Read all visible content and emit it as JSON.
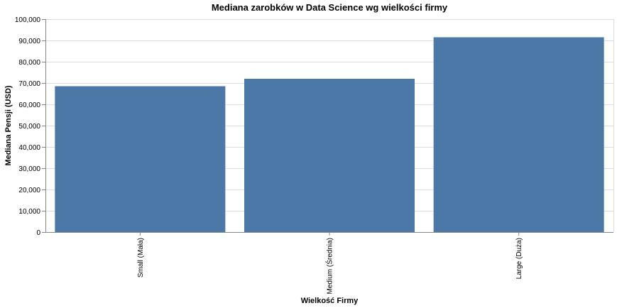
{
  "chart_data": {
    "type": "bar",
    "title": "Mediana zarobków w Data Science wg wielkości firmy",
    "xlabel": "Wielkość Firmy",
    "ylabel": "Mediana Pensji (USD)",
    "categories": [
      "Small (Mała)",
      "Medium (Średnia)",
      "Large (Duża)"
    ],
    "values": [
      68500,
      72000,
      91500
    ],
    "ylim": [
      0,
      100000
    ],
    "yticks": [
      0,
      10000,
      20000,
      30000,
      40000,
      50000,
      60000,
      70000,
      80000,
      90000,
      100000
    ],
    "ytick_labels": [
      "0",
      "10,000",
      "20,000",
      "30,000",
      "40,000",
      "50,000",
      "60,000",
      "70,000",
      "80,000",
      "90,000",
      "100,000"
    ],
    "grid": true,
    "bar_color": "#4c78a8"
  }
}
